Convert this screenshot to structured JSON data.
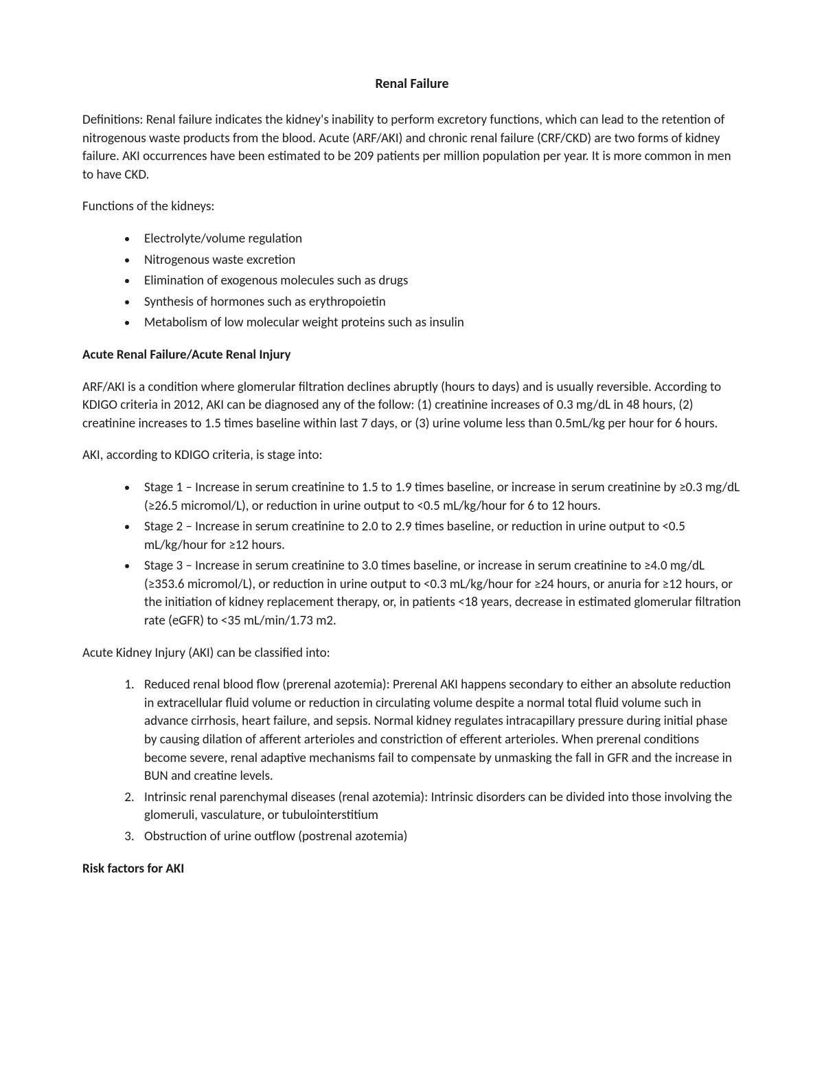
{
  "title": "Renal Failure",
  "definitions_label": "Definitions:",
  "definitions_text": " Renal failure indicates the kidney's inability to perform excretory functions, which can lead to the retention of nitrogenous waste products from the blood. Acute (ARF/AKI) and chronic renal failure (CRF/CKD) are two forms of kidney failure. AKI occurrences have been estimated to be 209 patients per million population per year. It is more common in men to have CKD.",
  "functions_heading": "Functions of the kidneys:",
  "functions": [
    "Electrolyte/volume regulation",
    "Nitrogenous waste excretion",
    "Elimination of exogenous molecules such as drugs",
    "Synthesis of hormones such as erythropoietin",
    "Metabolism of low molecular weight proteins such as insulin"
  ],
  "arf_heading": "Acute Renal Failure/Acute Renal Injury",
  "arf_para": "ARF/AKI is a condition where glomerular filtration declines abruptly (hours to days) and is usually reversible. According to KDIGO criteria in 2012, AKI can be diagnosed any of the follow: (1) creatinine increases of 0.3 mg/dL in 48 hours, (2) creatinine increases to 1.5 times baseline within last 7 days, or (3) urine volume less than 0.5mL/kg per hour for 6 hours.",
  "stages_intro": "AKI, according to KDIGO criteria, is stage into:",
  "stages": [
    "Stage 1 – Increase in serum creatinine to 1.5 to 1.9 times baseline, or increase in serum creatinine by ≥0.3 mg/dL (≥26.5 micromol/L), or reduction in urine output to <0.5 mL/kg/hour for 6 to 12 hours.",
    "Stage 2 – Increase in serum creatinine to 2.0 to 2.9 times baseline, or reduction in urine output to <0.5 mL/kg/hour for ≥12 hours.",
    "Stage 3 – Increase in serum creatinine to 3.0 times baseline, or increase in serum creatinine to ≥4.0 mg/dL (≥353.6 micromol/L), or reduction in urine output to <0.3 mL/kg/hour for ≥24 hours, or anuria for ≥12 hours, or the initiation of kidney replacement therapy, or, in patients <18 years, decrease in estimated glomerular filtration rate (eGFR) to <35 mL/min/1.73 m2."
  ],
  "class_intro": "Acute Kidney Injury (AKI) can be classified into:",
  "classifications": [
    "Reduced renal blood flow (prerenal azotemia): Prerenal AKI happens secondary to either an absolute reduction in extracellular fluid volume or reduction in circulating volume despite a normal total fluid volume such in advance cirrhosis, heart failure, and sepsis. Normal kidney regulates intracapillary pressure during initial phase by causing dilation of afferent arterioles and constriction of efferent arterioles. When prerenal conditions become severe, renal adaptive mechanisms fail to compensate by unmasking the fall in GFR and the increase in BUN and creatine levels.",
    "Intrinsic renal parenchymal diseases (renal azotemia): Intrinsic disorders can be divided into those involving the glomeruli, vasculature, or tubulointerstitium",
    "Obstruction of urine outflow (postrenal azotemia)"
  ],
  "risk_heading": "Risk factors for AKI"
}
